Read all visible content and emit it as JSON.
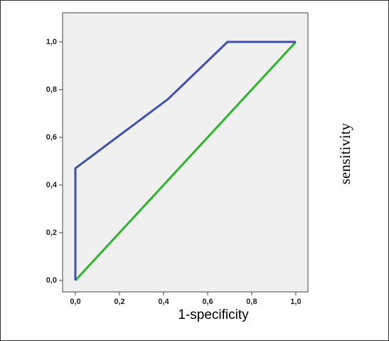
{
  "chart_data": {
    "type": "line",
    "x_label": "1-specificity",
    "y_label": "sensitivity",
    "xlim": [
      -0.058,
      1.055
    ],
    "ylim": [
      -0.048,
      1.122
    ],
    "xticks": [
      {
        "value": 0,
        "label": "0,0"
      },
      {
        "value": 0.2,
        "label": "0,2"
      },
      {
        "value": 0.4,
        "label": "0,4"
      },
      {
        "value": 0.6,
        "label": "0,6"
      },
      {
        "value": 0.8,
        "label": "0,8"
      },
      {
        "value": 1,
        "label": "1,0"
      }
    ],
    "yticks": [
      {
        "value": 0,
        "label": "0,0"
      },
      {
        "value": 0.2,
        "label": "0,2"
      },
      {
        "value": 0.4,
        "label": "0,4"
      },
      {
        "value": 0.6,
        "label": "0,6"
      },
      {
        "value": 0.8,
        "label": "0,8"
      },
      {
        "value": 1,
        "label": "1,0"
      }
    ],
    "series": [
      {
        "color": "#3f4fb0",
        "x": [
          0,
          0,
          0.42,
          0.69,
          1
        ],
        "values": [
          0,
          0.47,
          0.76,
          1,
          1
        ]
      },
      {
        "color": "#2cb52c",
        "x": [
          0,
          1
        ],
        "values": [
          0,
          1
        ]
      }
    ]
  }
}
